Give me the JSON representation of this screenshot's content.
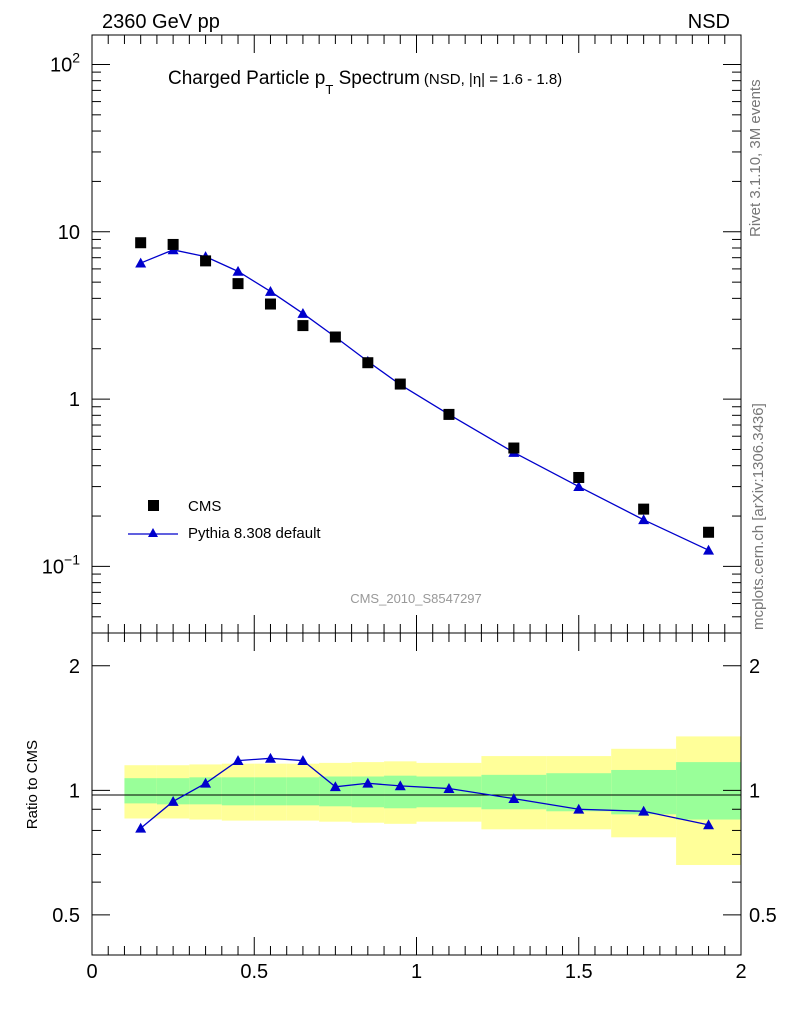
{
  "header": {
    "left": "2360 GeV pp",
    "right": "NSD"
  },
  "side_text": {
    "top": "Rivet 3.1.10,  3M events",
    "bottom": "mcplots.cern.ch [arXiv:1306.3436]"
  },
  "watermark": "CMS_2010_S8547297",
  "colors": {
    "cms": "#000000",
    "pythia": "#0000cc",
    "band_inner": "#99ff99",
    "band_outer": "#ffff99"
  },
  "chart_data": [
    {
      "type": "scatter",
      "title_main": "Charged Particle p",
      "title_sub": "T",
      "title_main2": " Spectrum",
      "title_small": "(NSD, |η| = 1.6 - 1.8)",
      "yscale": "log",
      "xlim": [
        0,
        2
      ],
      "ylim": [
        0.04,
        150
      ],
      "y_ticks": [
        {
          "value": 100,
          "base": "10",
          "exp": "2"
        },
        {
          "value": 10,
          "base": "10",
          "exp": ""
        },
        {
          "value": 1,
          "base": "1",
          "exp": ""
        },
        {
          "value": 0.1,
          "base": "10",
          "exp": "−1"
        }
      ],
      "legend": {
        "placement": "bottom-left",
        "entries": [
          "CMS",
          "Pythia 8.308 default"
        ]
      },
      "series": [
        {
          "name": "CMS",
          "marker": "square",
          "x": [
            0.15,
            0.25,
            0.35,
            0.45,
            0.55,
            0.65,
            0.75,
            0.85,
            0.95,
            1.1,
            1.3,
            1.5,
            1.7,
            1.9
          ],
          "y": [
            8.6,
            8.4,
            6.7,
            4.9,
            3.7,
            2.75,
            2.35,
            1.65,
            1.23,
            0.81,
            0.51,
            0.34,
            0.22,
            0.16
          ]
        },
        {
          "name": "Pythia 8.308 default",
          "marker": "triangle",
          "x": [
            0.15,
            0.25,
            0.35,
            0.45,
            0.55,
            0.65,
            0.75,
            0.85,
            0.95,
            1.1,
            1.3,
            1.5,
            1.7,
            1.9
          ],
          "y": [
            6.5,
            7.8,
            7.1,
            5.8,
            4.4,
            3.25,
            2.35,
            1.68,
            1.22,
            0.81,
            0.48,
            0.3,
            0.19,
            0.125
          ]
        }
      ]
    },
    {
      "type": "line",
      "ylabel": "Ratio to CMS",
      "yscale": "log",
      "xlim": [
        0,
        2
      ],
      "ylim": [
        0.4,
        2.4
      ],
      "x_ticks": [
        {
          "value": 0,
          "label": "0"
        },
        {
          "value": 0.5,
          "label": "0.5"
        },
        {
          "value": 1,
          "label": "1"
        },
        {
          "value": 1.5,
          "label": "1.5"
        },
        {
          "value": 2,
          "label": "2"
        }
      ],
      "y_ticks": [
        {
          "value": 0.5,
          "label": "0.5"
        },
        {
          "value": 1,
          "label": "1"
        },
        {
          "value": 2,
          "label": "2"
        }
      ],
      "bands": {
        "edges": [
          0.1,
          0.2,
          0.3,
          0.4,
          0.5,
          0.6,
          0.7,
          0.8,
          0.9,
          1.0,
          1.2,
          1.4,
          1.6,
          1.8,
          2.0
        ],
        "inner_lo": [
          0.93,
          0.925,
          0.925,
          0.92,
          0.92,
          0.92,
          0.915,
          0.91,
          0.905,
          0.91,
          0.9,
          0.89,
          0.875,
          0.85
        ],
        "inner_hi": [
          1.07,
          1.07,
          1.075,
          1.075,
          1.075,
          1.075,
          1.08,
          1.08,
          1.085,
          1.08,
          1.09,
          1.1,
          1.12,
          1.17
        ],
        "outer_lo": [
          0.855,
          0.855,
          0.85,
          0.845,
          0.845,
          0.845,
          0.84,
          0.835,
          0.83,
          0.84,
          0.805,
          0.805,
          0.77,
          0.66
        ],
        "outer_hi": [
          1.15,
          1.15,
          1.155,
          1.16,
          1.16,
          1.16,
          1.165,
          1.17,
          1.175,
          1.165,
          1.21,
          1.21,
          1.26,
          1.35
        ]
      },
      "series": [
        {
          "name": "Pythia 8.308 default",
          "x": [
            0.15,
            0.25,
            0.35,
            0.45,
            0.55,
            0.65,
            0.75,
            0.85,
            0.95,
            1.1,
            1.3,
            1.5,
            1.7,
            1.9
          ],
          "y": [
            0.81,
            0.94,
            1.04,
            1.18,
            1.195,
            1.18,
            1.02,
            1.04,
            1.025,
            1.01,
            0.955,
            0.9,
            0.89,
            0.825
          ]
        }
      ]
    }
  ]
}
